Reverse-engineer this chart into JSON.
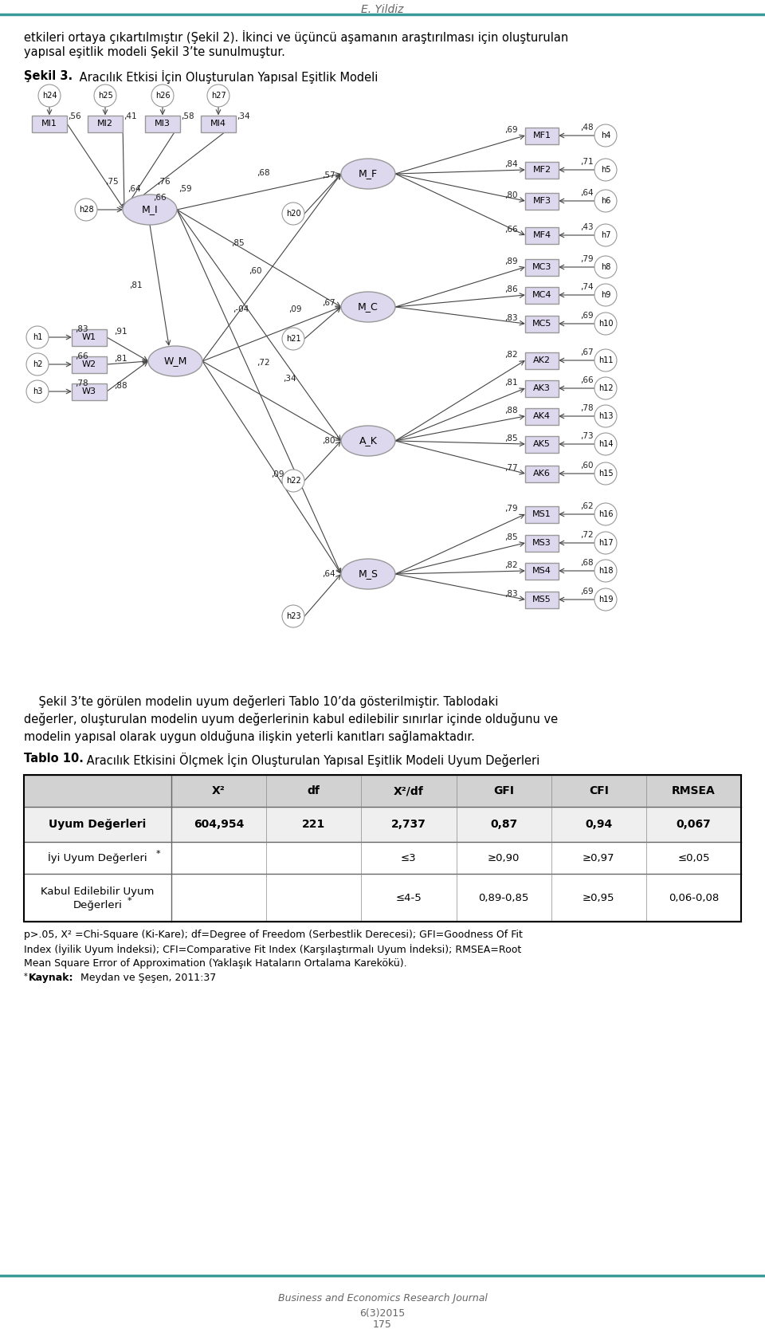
{
  "page_title": "E. Yildiz",
  "intro_text_line1": "etkileri ortaya çıkartılmıştır (Şekil 2). İkinci ve üçüncü aşamanın araştırılması için oluşturulan",
  "intro_text_line2": "yapısal eşitlik modeli Şekil 3’te sunulmuştur.",
  "figure_title_bold": "Şekil 3.",
  "figure_title_rest": " Aracılık Etkisi İçin Oluşturulan Yapısal Eşitlik Modeli",
  "paragraph_indent": "    Şekil 3’te görülen modelin uyum değerleri Tablo 10’da gösterilmiştir. Tablodaki",
  "paragraph_line2": "değerler, oluşturulan modelin uyum değerlerinin kabul edilebilir sınırlar içinde olduğunu ve",
  "paragraph_line3": "modelin yapısal olarak uygun olduğuna ilişkin yeterli kanıtları sağlamaktadır.",
  "table_title_bold": "Tablo 10.",
  "table_title_rest": " Aracılık Etkisini Ölçmek İçin Oluşturulan Yapısal Eşitlik Modeli Uyum Değerleri",
  "col_headers": [
    "X²",
    "df",
    "X²/df",
    "GFI",
    "CFI",
    "RMSEA"
  ],
  "row1_label": "Uyum Değerleri",
  "row1_values": [
    "604,954",
    "221",
    "2,737",
    "0,87",
    "0,94",
    "0,067"
  ],
  "row2_label": "İyi Uyum Değerleri",
  "row2_values": [
    "",
    "",
    "≤3",
    "≥0,90",
    "≥0,97",
    "≤0,05"
  ],
  "row3_label_l1": "Kabul Edilebilir Uyum",
  "row3_label_l2": "Değerleri",
  "row3_values": [
    "",
    "",
    "≤4-5",
    "0,89-0,85",
    "≥0,95",
    "0,06-0,08"
  ],
  "footnote1": "p>.05, X² =Chi-Square (Ki-Kare); df=Degree of Freedom (Serbestlik Derecesi); GFI=Goodness Of Fit",
  "footnote2": "Index (İyilik Uyum İndeksi); CFI=Comparative Fit Index (Karşılaştırmalı Uyum İndeksi); RMSEA=Root",
  "footnote3": "Mean Square Error of Approximation (Yaklaşık Hataların Ortalama Karekökü).",
  "footnote_kaynak_bold": "Kaynak:",
  "footnote_kaynak_rest": " Meydan ve Şeşen, 2011:37",
  "footer_journal": "Business and Economics Research Journal",
  "footer_volume": "6(3)2015",
  "footer_page": "175",
  "bg_color": "#ffffff",
  "text_color": "#000000",
  "teal_line_color": "#3a9a9a",
  "ell_color": "#ddd8ee",
  "ell_ec": "#999999",
  "rect_color": "#ddd8ee",
  "rect_ec": "#999999",
  "circ_color": "#ffffff",
  "circ_ec": "#999999",
  "arrow_color": "#444444",
  "label_color": "#222222"
}
